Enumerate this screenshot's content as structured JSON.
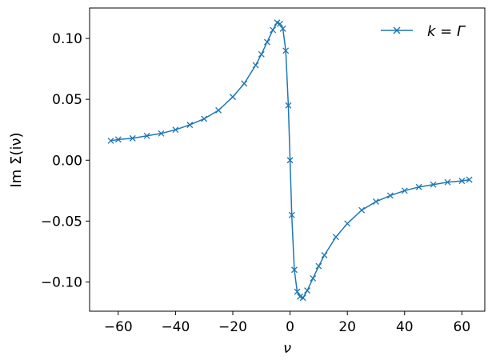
{
  "chart_data": {
    "type": "line",
    "title": "",
    "xlabel": "ν",
    "ylabel": "Im Σ(iν)",
    "xlim": [
      -70,
      68
    ],
    "ylim": [
      -0.124,
      0.125
    ],
    "xticks": [
      -60,
      -40,
      -20,
      0,
      20,
      40,
      60
    ],
    "xtick_labels": [
      "−60",
      "−40",
      "−20",
      "0",
      "20",
      "40",
      "60"
    ],
    "yticks": [
      -0.1,
      -0.05,
      0.0,
      0.05,
      0.1
    ],
    "ytick_labels": [
      "−0.10",
      "−0.05",
      "0.00",
      "0.05",
      "0.10"
    ],
    "grid": false,
    "legend_position": "top-right",
    "series": [
      {
        "name": "k = Γ",
        "color": "#1f77b4",
        "marker": "x",
        "x": [
          -62.6,
          -60,
          -55,
          -50,
          -45,
          -40,
          -35,
          -30,
          -25,
          -20,
          -16,
          -12,
          -10,
          -8,
          -6,
          -4.5,
          -3.5,
          -2.5,
          -1.5,
          -0.6,
          0,
          0.6,
          1.5,
          2.5,
          3.5,
          4.5,
          6,
          8,
          10,
          12,
          16,
          20,
          25,
          30,
          35,
          40,
          45,
          50,
          55,
          60,
          62.6
        ],
        "y": [
          0.016,
          0.017,
          0.018,
          0.02,
          0.022,
          0.025,
          0.029,
          0.034,
          0.041,
          0.052,
          0.063,
          0.078,
          0.087,
          0.097,
          0.107,
          0.113,
          0.112,
          0.108,
          0.09,
          0.045,
          0.0,
          -0.045,
          -0.09,
          -0.108,
          -0.112,
          -0.113,
          -0.107,
          -0.097,
          -0.087,
          -0.078,
          -0.063,
          -0.052,
          -0.041,
          -0.034,
          -0.029,
          -0.025,
          -0.022,
          -0.02,
          -0.018,
          -0.017,
          -0.016
        ]
      }
    ]
  }
}
